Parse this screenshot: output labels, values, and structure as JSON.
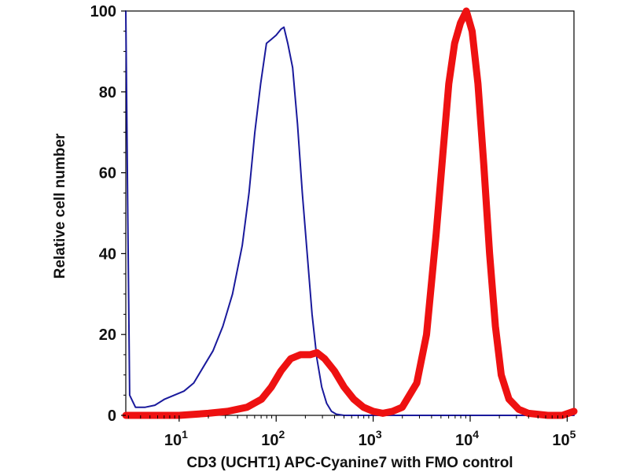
{
  "chart_data": {
    "type": "line",
    "title": "",
    "xlabel": "CD3 (UCHT1) APC-Cyanine7 with FMO control",
    "ylabel": "Relative cell number",
    "xscale": "log",
    "xlim_log10": [
      0.45,
      5.07
    ],
    "ylim": [
      0,
      100
    ],
    "y_ticks": [
      0,
      20,
      40,
      60,
      80,
      100
    ],
    "x_ticks": [
      {
        "base": "10",
        "exp": "1",
        "log10": 1
      },
      {
        "base": "10",
        "exp": "2",
        "log10": 2
      },
      {
        "base": "10",
        "exp": "3",
        "log10": 3
      },
      {
        "base": "10",
        "exp": "4",
        "log10": 4
      },
      {
        "base": "10",
        "exp": "5",
        "log10": 5
      }
    ],
    "grid": false,
    "series": [
      {
        "name": "FMO control",
        "color": "#1a1a9c",
        "points": [
          [
            0.45,
            100
          ],
          [
            0.47,
            50
          ],
          [
            0.49,
            5
          ],
          [
            0.55,
            2
          ],
          [
            0.65,
            2
          ],
          [
            0.75,
            2.5
          ],
          [
            0.85,
            4
          ],
          [
            0.95,
            5
          ],
          [
            1.05,
            6
          ],
          [
            1.15,
            8
          ],
          [
            1.25,
            12
          ],
          [
            1.35,
            16
          ],
          [
            1.45,
            22
          ],
          [
            1.55,
            30
          ],
          [
            1.65,
            42
          ],
          [
            1.72,
            55
          ],
          [
            1.78,
            70
          ],
          [
            1.84,
            82
          ],
          [
            1.9,
            92
          ],
          [
            1.95,
            93
          ],
          [
            2.0,
            94
          ],
          [
            2.05,
            95.5
          ],
          [
            2.08,
            96
          ],
          [
            2.12,
            92
          ],
          [
            2.17,
            86
          ],
          [
            2.22,
            72
          ],
          [
            2.27,
            55
          ],
          [
            2.32,
            40
          ],
          [
            2.37,
            25
          ],
          [
            2.42,
            14
          ],
          [
            2.47,
            7
          ],
          [
            2.52,
            3
          ],
          [
            2.57,
            1
          ],
          [
            2.62,
            0.3
          ],
          [
            2.7,
            0
          ],
          [
            5.07,
            0
          ]
        ]
      },
      {
        "name": "CD3 (UCHT1) APC-Cyanine7",
        "color": "#ee1111",
        "points": [
          [
            0.45,
            0
          ],
          [
            1.0,
            0
          ],
          [
            1.3,
            0.5
          ],
          [
            1.5,
            1
          ],
          [
            1.7,
            2
          ],
          [
            1.85,
            4
          ],
          [
            1.95,
            7
          ],
          [
            2.05,
            11
          ],
          [
            2.15,
            14
          ],
          [
            2.25,
            15
          ],
          [
            2.35,
            15
          ],
          [
            2.42,
            15.5
          ],
          [
            2.5,
            14
          ],
          [
            2.6,
            11
          ],
          [
            2.7,
            7
          ],
          [
            2.8,
            4
          ],
          [
            2.9,
            2
          ],
          [
            3.0,
            1
          ],
          [
            3.1,
            0.5
          ],
          [
            3.2,
            1
          ],
          [
            3.3,
            2
          ],
          [
            3.45,
            8
          ],
          [
            3.55,
            20
          ],
          [
            3.65,
            45
          ],
          [
            3.72,
            65
          ],
          [
            3.78,
            82
          ],
          [
            3.84,
            92
          ],
          [
            3.9,
            97
          ],
          [
            3.96,
            100
          ],
          [
            4.02,
            95
          ],
          [
            4.08,
            82
          ],
          [
            4.14,
            62
          ],
          [
            4.2,
            40
          ],
          [
            4.26,
            22
          ],
          [
            4.32,
            10
          ],
          [
            4.4,
            4
          ],
          [
            4.5,
            1.5
          ],
          [
            4.6,
            0.5
          ],
          [
            4.8,
            0
          ],
          [
            4.95,
            0
          ],
          [
            5.07,
            1
          ]
        ]
      }
    ]
  }
}
